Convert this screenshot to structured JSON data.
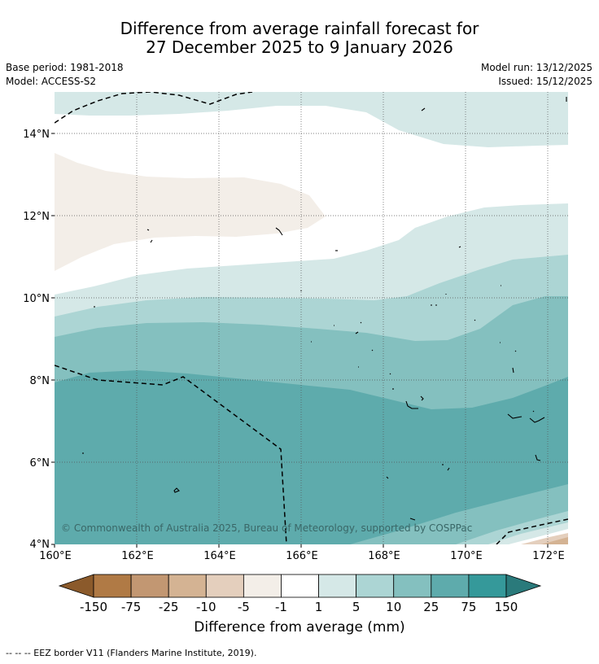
{
  "title": {
    "line1": "Difference from average rainfall forecast for",
    "line2": "27 December 2025 to 9 January 2026"
  },
  "meta": {
    "base_period": "Base period: 1981-2018",
    "model": "Model: ACCESS-S2",
    "model_run": "Model run: 13/12/2025",
    "issued": "Issued: 15/12/2025"
  },
  "map": {
    "lat_labels": [
      "14°N",
      "12°N",
      "10°N",
      "8°N",
      "6°N",
      "4°N"
    ],
    "lon_labels": [
      "160°E",
      "162°E",
      "164°E",
      "166°E",
      "168°E",
      "170°E",
      "172°E"
    ],
    "copyright": "© Commonwealth of Australia 2025, Bureau of Meteorology, supported by COSPPac"
  },
  "colorbar": {
    "ticks": [
      "-150",
      "-75",
      "-25",
      "-10",
      "-5",
      "-1",
      "1",
      "5",
      "10",
      "25",
      "75",
      "150"
    ],
    "colors": [
      "#8b5a2b",
      "#b07a45",
      "#c29772",
      "#d4b393",
      "#e4cfbd",
      "#f3eee8",
      "#ffffff",
      "#d5e8e7",
      "#acd5d4",
      "#84c0bf",
      "#5eabac",
      "#35999a",
      "#2a7a7b"
    ],
    "label": "Difference from average (mm)"
  },
  "legend": {
    "eez_text": "--  --  -- EEZ border V11 (Flanders Marine Institute, 2019)."
  }
}
